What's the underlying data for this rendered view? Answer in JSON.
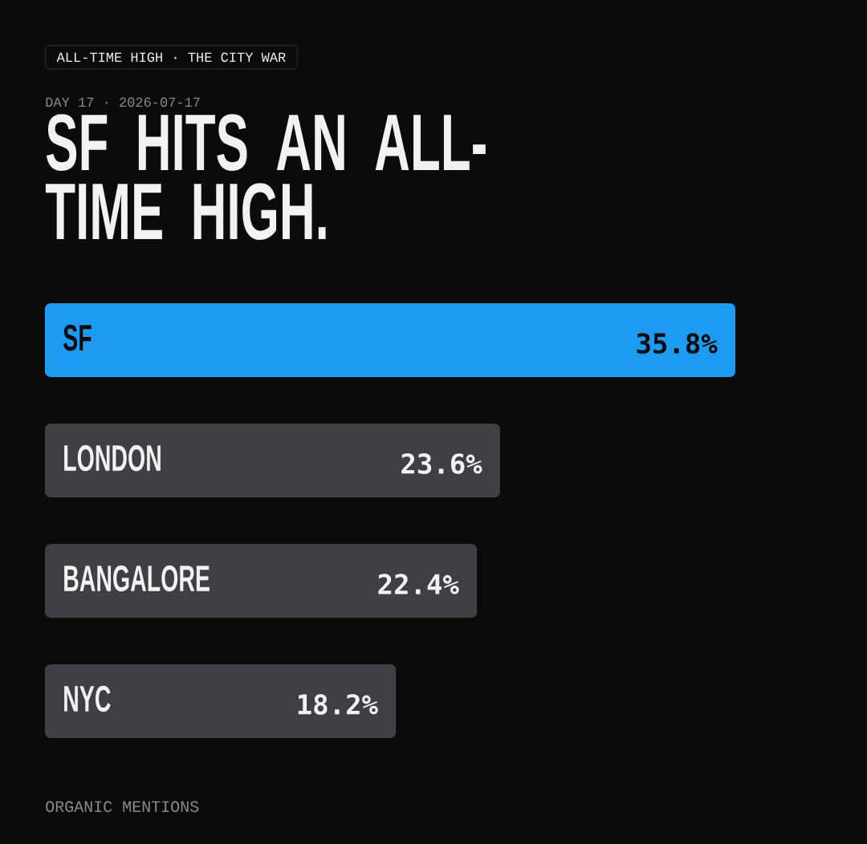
{
  "chart_data": {
    "type": "bar",
    "orientation": "horizontal",
    "title": "SF HITS AN ALL-TIME HIGH.",
    "subtitle": "DAY 17 · 2026-07-17",
    "annotations": [
      "ALL-TIME HIGH · THE CITY WAR",
      "ORGANIC MENTIONS"
    ],
    "categories": [
      "SF",
      "LONDON",
      "BANGALORE",
      "NYC"
    ],
    "values": [
      35.8,
      23.6,
      22.4,
      18.2
    ],
    "value_labels": [
      "35.8%",
      "23.6%",
      "22.4%",
      "18.2%"
    ],
    "colors": [
      "#1d9bf0",
      "#3f4045",
      "#3f4045",
      "#3f4045"
    ]
  }
}
